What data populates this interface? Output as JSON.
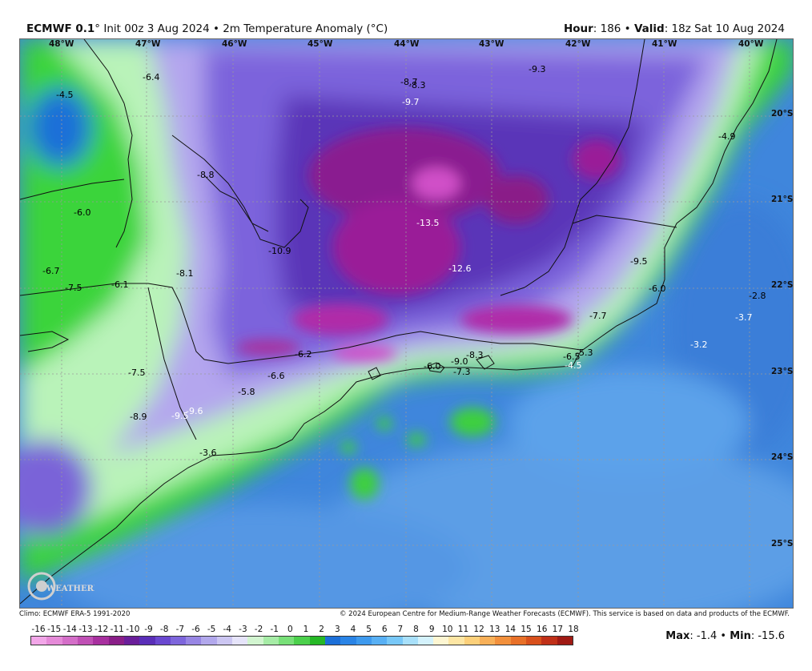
{
  "header": {
    "model": "ECMWF 0.1",
    "init": "° Init 00z 3 Aug 2024 • 2m Temperature Anomaly (°C)",
    "hour_label": "Hour",
    "hour_value": ": 186 • ",
    "valid_label": "Valid",
    "valid_value": ": 18z Sat 10 Aug 2024"
  },
  "map": {
    "lon_labels": [
      "48°W",
      "47°W",
      "46°W",
      "45°W",
      "44°W",
      "43°W",
      "42°W",
      "41°W",
      "40°W"
    ],
    "lat_labels": [
      "20°S",
      "21°S",
      "22°S",
      "23°S",
      "24°S",
      "25°S"
    ],
    "value_labels": [
      {
        "text": "-4.5",
        "color": "#000000"
      },
      {
        "text": "-6.4",
        "color": "#000000"
      },
      {
        "text": "-8.8",
        "color": "#000000"
      },
      {
        "text": "-6.0",
        "color": "#000000"
      },
      {
        "text": "-6.7",
        "color": "#000000"
      },
      {
        "text": "-7.5",
        "color": "#000000"
      },
      {
        "text": "-6.1",
        "color": "#000000"
      },
      {
        "text": "-8.1",
        "color": "#000000"
      },
      {
        "text": "-10.9",
        "color": "#000000"
      },
      {
        "text": "-8.7",
        "color": "#000000"
      },
      {
        "text": "-8.3",
        "color": "#000000"
      },
      {
        "text": "-9.7",
        "color": "#ffffff"
      },
      {
        "text": "-9.3",
        "color": "#000000"
      },
      {
        "text": "-13.5",
        "color": "#ffffff"
      },
      {
        "text": "-12.6",
        "color": "#ffffff"
      },
      {
        "text": "-4.9",
        "color": "#000000"
      },
      {
        "text": "-9.5",
        "color": "#000000"
      },
      {
        "text": "-6.0",
        "color": "#000000"
      },
      {
        "text": "-2.8",
        "color": "#000000"
      },
      {
        "text": "-3.7",
        "color": "#ffffff"
      },
      {
        "text": "-7.7",
        "color": "#000000"
      },
      {
        "text": "-3.2",
        "color": "#ffffff"
      },
      {
        "text": "-6.5",
        "color": "#000000"
      },
      {
        "text": "-5.3",
        "color": "#000000"
      },
      {
        "text": "-4.5",
        "color": "#ffffff"
      },
      {
        "text": "-9.0",
        "color": "#000000"
      },
      {
        "text": "-8.3",
        "color": "#000000"
      },
      {
        "text": "-7.3",
        "color": "#000000"
      },
      {
        "text": "-6.0",
        "color": "#000000"
      },
      {
        "text": "-6.2",
        "color": "#000000"
      },
      {
        "text": "-6.6",
        "color": "#000000"
      },
      {
        "text": "-5.8",
        "color": "#000000"
      },
      {
        "text": "-7.5",
        "color": "#000000"
      },
      {
        "text": "-8.9",
        "color": "#000000"
      },
      {
        "text": "-9.5",
        "color": "#ffffff"
      },
      {
        "text": "-9.6",
        "color": "#ffffff"
      },
      {
        "text": "-3.6",
        "color": "#000000"
      }
    ]
  },
  "footer": {
    "climo": "Climo: ECMWF ERA-5 1991-2020",
    "copyright": "© 2024 European Centre for Medium-Range Weather Forecasts (ECMWF). This service is based on data and products of the ECMWF."
  },
  "colorbar": {
    "ticks": [
      "-16",
      "-15",
      "-14",
      "-13",
      "-12",
      "-11",
      "-10",
      "-9",
      "-8",
      "-7",
      "-6",
      "-5",
      "-4",
      "-3",
      "-2",
      "-1",
      "0",
      "1",
      "2",
      "3",
      "4",
      "5",
      "6",
      "7",
      "8",
      "9",
      "10",
      "11",
      "12",
      "13",
      "14",
      "15",
      "16",
      "17",
      "18"
    ],
    "colors": [
      "#f2a6e8",
      "#e58ad8",
      "#d46ec8",
      "#c050b5",
      "#a8309f",
      "#8a1e88",
      "#6a1e9a",
      "#5a2eb8",
      "#6a48d0",
      "#7e66dc",
      "#9886e4",
      "#b2a8ec",
      "#ccc6f2",
      "#e6e4fa",
      "#d2f5d0",
      "#a6eca6",
      "#78e078",
      "#4cd04c",
      "#26b826",
      "#1c6fd8",
      "#2a84e6",
      "#3e9aee",
      "#58b0f4",
      "#78c8f8",
      "#a8e0fa",
      "#d4f2fc",
      "#fdf6d2",
      "#fde6a4",
      "#fcd07a",
      "#f8b058",
      "#f2903c",
      "#e87028",
      "#d8501c",
      "#c03018",
      "#a01a14"
    ],
    "max_label": "Max",
    "max_value": ": -1.4 • ",
    "min_label": "Min",
    "min_value": ": -15.6"
  },
  "logo": {
    "text": "WEATHERBELL"
  }
}
